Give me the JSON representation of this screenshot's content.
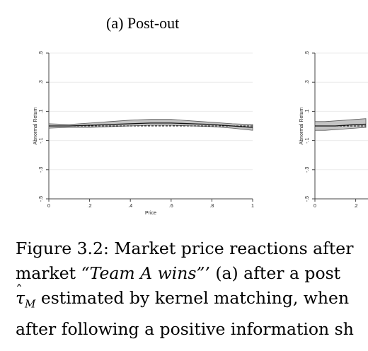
{
  "subfigure_a": {
    "caption": "(a) Post-out"
  },
  "chart_data": [
    {
      "type": "line",
      "panel": "a",
      "xlabel": "Price",
      "ylabel": "Abnormal Return",
      "xlim": [
        0,
        1
      ],
      "ylim": [
        -0.5,
        0.5
      ],
      "x_ticks": [
        {
          "value": 0,
          "label": "0"
        },
        {
          "value": 0.2,
          "label": ".2"
        },
        {
          "value": 0.4,
          "label": ".4"
        },
        {
          "value": 0.6,
          "label": ".6"
        },
        {
          "value": 0.8,
          "label": ".8"
        },
        {
          "value": 1,
          "label": "1"
        }
      ],
      "y_ticks": [
        {
          "value": -0.5,
          "label": "-.5"
        },
        {
          "value": -0.3,
          "label": "-.3"
        },
        {
          "value": -0.1,
          "label": "-.1"
        },
        {
          "value": 0.1,
          "label": ".1"
        },
        {
          "value": 0.3,
          "label": ".3"
        },
        {
          "value": 0.5,
          "label": ".5"
        }
      ],
      "grid": true,
      "x": [
        0,
        0.1,
        0.2,
        0.3,
        0.4,
        0.5,
        0.6,
        0.7,
        0.8,
        0.9,
        1
      ],
      "series": [
        {
          "style": "solid",
          "values": [
            0.0,
            0.0,
            0.005,
            0.01,
            0.015,
            0.02,
            0.02,
            0.015,
            0.01,
            0.0,
            -0.01
          ]
        },
        {
          "style": "dashed",
          "values": [
            0.0,
            0.0,
            0.0,
            0.0,
            0.0,
            0.0,
            0.0,
            0.0,
            0.0,
            0.0,
            0.0
          ]
        }
      ],
      "confidence_band": {
        "lower": [
          -0.015,
          -0.01,
          -0.01,
          -0.005,
          0.0,
          0.005,
          0.005,
          0.0,
          -0.005,
          -0.015,
          -0.03
        ],
        "upper": [
          0.015,
          0.01,
          0.02,
          0.03,
          0.04,
          0.045,
          0.045,
          0.035,
          0.025,
          0.015,
          0.01
        ]
      }
    },
    {
      "type": "line",
      "panel": "b",
      "partial": true,
      "ylabel": "Abnormal Return",
      "xlim": [
        0,
        1
      ],
      "ylim": [
        -0.5,
        0.5
      ],
      "x_ticks": [
        {
          "value": 0,
          "label": "0"
        },
        {
          "value": 0.2,
          "label": ".2"
        }
      ],
      "y_ticks": [
        {
          "value": -0.5,
          "label": "-.5"
        },
        {
          "value": -0.3,
          "label": "-.3"
        },
        {
          "value": -0.1,
          "label": "-.1"
        },
        {
          "value": 0.1,
          "label": ".1"
        },
        {
          "value": 0.3,
          "label": ".3"
        },
        {
          "value": 0.5,
          "label": ".5"
        }
      ],
      "grid": true,
      "x": [
        0,
        0.05,
        0.1,
        0.15,
        0.2,
        0.25
      ],
      "series": [
        {
          "style": "solid",
          "values": [
            0.0,
            0.0,
            0.0,
            0.005,
            0.01,
            0.012
          ]
        },
        {
          "style": "dashed",
          "values": [
            0.0,
            0.0,
            0.0,
            0.0,
            0.0,
            0.0
          ]
        }
      ],
      "confidence_band": {
        "lower": [
          -0.03,
          -0.03,
          -0.025,
          -0.02,
          -0.015,
          -0.01
        ],
        "upper": [
          0.03,
          0.03,
          0.035,
          0.04,
          0.045,
          0.05
        ]
      }
    }
  ],
  "caption": {
    "line1": "Figure 3.2: Market price reactions after",
    "line2_pre": "market ",
    "line2_em": "“Team A wins”’",
    "line2_post": " (a) after a post",
    "line3_tau": "τ",
    "line3_hat": "ˆ",
    "line3_sub": "M",
    "line3_post": " estimated by kernel matching, when",
    "line4": "after following a positive information sh"
  }
}
